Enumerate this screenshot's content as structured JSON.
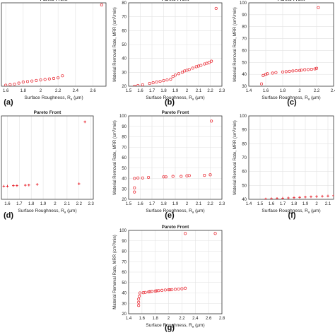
{
  "chart_data": [
    {
      "type": "scatter",
      "panel_label": "(a)",
      "title": "Pareto Front",
      "xlabel": "Surface Roughness, R",
      "xlabel_sub": "a",
      "xlabel_unit": " (μm)",
      "ylabel": "",
      "xlim": [
        1.55,
        2.75
      ],
      "ylim": [
        20,
        100
      ],
      "xticks": [
        "1.6",
        "1.8",
        "2",
        "2.2",
        "2.4",
        "2.6",
        "2.8"
      ],
      "xtick_values": [
        1.6,
        1.8,
        2.0,
        2.2,
        2.4,
        2.6,
        2.8
      ],
      "yticks": [],
      "ytick_values": [],
      "grid": true,
      "series": [
        {
          "color": "#e8202a",
          "marker": "circle",
          "x": [
            1.6,
            1.65,
            1.7,
            1.75,
            1.8,
            1.85,
            1.9,
            1.95,
            2.0,
            2.05,
            2.1,
            2.15,
            2.2,
            2.25,
            2.7
          ],
          "y": [
            21,
            21.5,
            22,
            23,
            24,
            24.5,
            25,
            25.5,
            26,
            26.5,
            27,
            27.5,
            28,
            30,
            98
          ]
        }
      ]
    },
    {
      "type": "scatter",
      "panel_label": "(b)",
      "title": "Pareto Front",
      "xlabel": "Surface Roughness, R",
      "xlabel_sub": "a",
      "xlabel_unit": " (μm)",
      "ylabel": "Material Removal Rate, MRR (cm",
      "ylabel_sup": "3",
      "ylabel_unit": "/min)",
      "xlim": [
        1.5,
        2.3
      ],
      "ylim": [
        20,
        80
      ],
      "xticks": [
        "1.5",
        "1.6",
        "1.7",
        "1.8",
        "1.9",
        "2",
        "2.1",
        "2.2",
        "2.3"
      ],
      "xtick_values": [
        1.5,
        1.6,
        1.7,
        1.8,
        1.9,
        2.0,
        2.1,
        2.2,
        2.3
      ],
      "yticks": [
        "20",
        "30",
        "40",
        "50",
        "60",
        "70",
        "80"
      ],
      "ytick_values": [
        20,
        30,
        40,
        50,
        60,
        70,
        80
      ],
      "grid": true,
      "series": [
        {
          "color": "#e8202a",
          "marker": "circle",
          "x": [
            1.55,
            1.58,
            1.62,
            1.68,
            1.71,
            1.74,
            1.77,
            1.8,
            1.83,
            1.86,
            1.88,
            1.9,
            1.93,
            1.96,
            1.98,
            2.0,
            2.02,
            2.05,
            2.08,
            2.1,
            2.12,
            2.15,
            2.17,
            2.19,
            2.21,
            2.25
          ],
          "y": [
            20,
            20.5,
            21,
            22,
            22.5,
            23,
            23.5,
            24,
            24.5,
            25,
            27,
            28,
            29,
            30,
            31,
            31.5,
            32,
            33,
            34,
            34.5,
            35,
            36,
            36.5,
            37,
            38,
            76
          ]
        }
      ]
    },
    {
      "type": "scatter",
      "panel_label": "(c)",
      "title": "Pareto Front",
      "xlabel": "Surface Roughness, R",
      "xlabel_sub": "a",
      "xlabel_unit": " (μm)",
      "ylabel": "Material Removal Rate, MRR (cm",
      "ylabel_sup": "3",
      "ylabel_unit": "/min)",
      "xlim": [
        1.4,
        2.4
      ],
      "ylim": [
        30,
        100
      ],
      "xticks": [
        "1.4",
        "1.6",
        "1.8",
        "2",
        "2.2",
        "2.4"
      ],
      "xtick_values": [
        1.4,
        1.6,
        1.8,
        2.0,
        2.2,
        2.4
      ],
      "yticks": [
        "30",
        "40",
        "50",
        "60",
        "70",
        "80",
        "90",
        "100"
      ],
      "ytick_values": [
        30,
        40,
        50,
        60,
        70,
        80,
        90,
        100
      ],
      "grid": true,
      "series": [
        {
          "color": "#e8202a",
          "marker": "circle",
          "x": [
            1.55,
            1.57,
            1.6,
            1.62,
            1.68,
            1.72,
            1.8,
            1.84,
            1.88,
            1.92,
            1.96,
            2.0,
            2.02,
            2.06,
            2.1,
            2.14,
            2.18,
            2.2,
            2.22
          ],
          "y": [
            32,
            39,
            40,
            40.5,
            41,
            41.5,
            42,
            42.2,
            42.5,
            42.8,
            43,
            43.2,
            43.5,
            43.8,
            44,
            44.2,
            44.5,
            45,
            96
          ]
        }
      ]
    },
    {
      "type": "scatter",
      "panel_label": "(d)",
      "title": "Pareto Front",
      "xlabel": "Surface Roughness, R",
      "xlabel_sub": "a",
      "xlabel_unit": " (μm)",
      "ylabel": "",
      "xlim": [
        1.55,
        2.32
      ],
      "ylim": [
        30,
        100
      ],
      "xticks": [
        "1.6",
        "1.7",
        "1.8",
        "1.9",
        "2",
        "2.1",
        "2.2",
        "2.3"
      ],
      "xtick_values": [
        1.6,
        1.7,
        1.8,
        1.9,
        2.0,
        2.1,
        2.2,
        2.3
      ],
      "yticks": [],
      "ytick_values": [],
      "grid": true,
      "series": [
        {
          "color": "#e8202a",
          "marker": "plus",
          "x": [
            1.57,
            1.6,
            1.65,
            1.68,
            1.75,
            1.78,
            1.85,
            2.2,
            2.25
          ],
          "y": [
            41,
            41,
            41.5,
            41.5,
            41.8,
            42,
            42.5,
            43,
            95
          ]
        }
      ]
    },
    {
      "type": "scatter",
      "panel_label": "(e)",
      "title": "Pareto Front",
      "xlabel": "Surface Roughness, R",
      "xlabel_sub": "a",
      "xlabel_unit": " (μm)",
      "ylabel": "Material Removal Rate, MRR (cm",
      "ylabel_sup": "3",
      "ylabel_unit": "/min)",
      "xlim": [
        1.5,
        2.3
      ],
      "ylim": [
        20,
        100
      ],
      "xticks": [
        "1.5",
        "1.6",
        "1.7",
        "1.8",
        "1.9",
        "2",
        "2.1",
        "2.2",
        "2.3"
      ],
      "xtick_values": [
        1.5,
        1.6,
        1.7,
        1.8,
        1.9,
        2.0,
        2.1,
        2.2,
        2.3
      ],
      "yticks": [
        "20",
        "30",
        "40",
        "50",
        "60",
        "70",
        "80",
        "90",
        "100"
      ],
      "ytick_values": [
        20,
        30,
        40,
        50,
        60,
        70,
        80,
        90,
        100
      ],
      "grid": true,
      "series": [
        {
          "color": "#e8202a",
          "marker": "circle",
          "x": [
            1.55,
            1.55,
            1.55,
            1.58,
            1.62,
            1.67,
            1.8,
            1.82,
            1.88,
            1.95,
            2.0,
            2.02,
            2.15,
            2.2,
            2.21
          ],
          "y": [
            27,
            31,
            40,
            40.5,
            40.5,
            41,
            41.5,
            41.5,
            42,
            42,
            42.5,
            42.8,
            43,
            43.5,
            95
          ]
        }
      ]
    },
    {
      "type": "scatter",
      "panel_label": "(f)",
      "title": "",
      "xlabel": "Surface Roughness, R",
      "xlabel_sub": "a",
      "xlabel_unit": " (μm)",
      "ylabel": "Material Removal Rate, MRR (cm",
      "ylabel_sup": "3",
      "ylabel_unit": "/min)",
      "xlim": [
        1.4,
        2.15
      ],
      "ylim": [
        40,
        100
      ],
      "xticks": [
        "1.4",
        "1.5",
        "1.6",
        "1.7",
        "1.8",
        "1.9",
        "2",
        "2.1"
      ],
      "xtick_values": [
        1.4,
        1.5,
        1.6,
        1.7,
        1.8,
        1.9,
        2.0,
        2.1
      ],
      "yticks": [
        "40",
        "50",
        "60",
        "70",
        "80",
        "90",
        "100"
      ],
      "ytick_values": [
        40,
        50,
        60,
        70,
        80,
        90,
        100
      ],
      "grid": true,
      "series": [
        {
          "color": "#e8202a",
          "marker": "plus",
          "x": [
            1.55,
            1.6,
            1.65,
            1.7,
            1.75,
            1.8,
            1.85,
            1.9,
            1.95,
            2.0,
            2.05,
            2.1,
            2.15
          ],
          "y": [
            40.2,
            40.4,
            40.6,
            40.8,
            41,
            41.2,
            41.4,
            41.6,
            41.8,
            42,
            42.2,
            42.4,
            42.6
          ]
        }
      ]
    },
    {
      "type": "scatter",
      "panel_label": "(g)",
      "title": "Pareto Front",
      "xlabel": "Surface Roughness, R",
      "xlabel_sub": "a",
      "xlabel_unit": " (μm)",
      "ylabel": "Material Removal Rate, MRR (cm",
      "ylabel_sup": "3",
      "ylabel_unit": "/min)",
      "xlim": [
        1.4,
        2.8
      ],
      "ylim": [
        20,
        100
      ],
      "xticks": [
        "1.4",
        "1.6",
        "1.8",
        "2",
        "2.2",
        "2.4",
        "2.6",
        "2.8"
      ],
      "xtick_values": [
        1.4,
        1.6,
        1.8,
        2.0,
        2.2,
        2.4,
        2.6,
        2.8
      ],
      "yticks": [
        "20",
        "30",
        "40",
        "50",
        "60",
        "70",
        "80",
        "90",
        "100"
      ],
      "ytick_values": [
        20,
        30,
        40,
        50,
        60,
        70,
        80,
        90,
        100
      ],
      "grid": true,
      "series": [
        {
          "color": "#e8202a",
          "marker": "circle",
          "x": [
            1.55,
            1.55,
            1.55,
            1.56,
            1.57,
            1.62,
            1.65,
            1.7,
            1.72,
            1.75,
            1.8,
            1.82,
            1.85,
            1.9,
            1.95,
            2.0,
            2.02,
            2.05,
            2.1,
            2.15,
            2.2,
            2.25,
            2.25,
            2.7
          ],
          "y": [
            28,
            31,
            34,
            37,
            40,
            40.2,
            40.5,
            41,
            41.2,
            41.5,
            41.8,
            42,
            42.2,
            42.5,
            42.8,
            43,
            43,
            43.2,
            43.5,
            43.8,
            44,
            44.5,
            97,
            97
          ]
        }
      ]
    }
  ]
}
